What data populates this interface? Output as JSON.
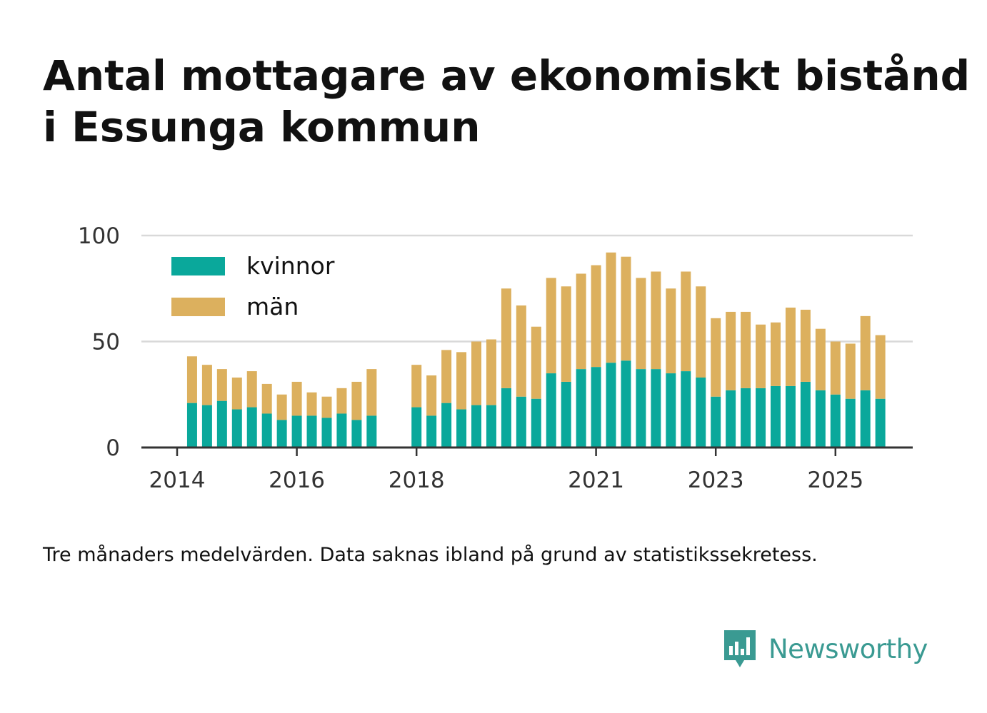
{
  "title": {
    "line1": "Antal mottagare av ekonomiskt bistånd",
    "line2": "i Essunga kommun"
  },
  "caption": "Tre månaders medelvärden. Data saknas ibland på grund av statistikssekretess.",
  "brand": {
    "name": "Newsworthy",
    "icon": "bar-chart-speech-bubble-icon",
    "color": "#3a9a92"
  },
  "colors": {
    "kvinnor": "#0aa89b",
    "man": "#dcb05e",
    "grid": "#d9d9d9",
    "axis": "#333333",
    "tick_text": "#333333"
  },
  "chart_data": {
    "type": "bar",
    "stacked": true,
    "xlabel": "",
    "ylabel": "",
    "ylim": [
      0,
      100
    ],
    "yticks": [
      0,
      50,
      100
    ],
    "xticks": [
      "2014",
      "2016",
      "2018",
      "2021",
      "2023",
      "2025"
    ],
    "grid": true,
    "legend_position": "top-left",
    "categories": [
      "2014-Q1",
      "2014-Q2",
      "2014-Q3",
      "2014-Q4",
      "2015-Q1",
      "2015-Q2",
      "2015-Q3",
      "2015-Q4",
      "2016-Q1",
      "2016-Q2",
      "2016-Q3",
      "2016-Q4",
      "2017-Q1",
      "2017-Q2",
      "2017-Q3",
      "2017-Q4",
      "2018-Q1",
      "2018-Q2",
      "2018-Q3",
      "2018-Q4",
      "2019-Q1",
      "2019-Q2",
      "2019-Q3",
      "2019-Q4",
      "2020-Q1",
      "2020-Q2",
      "2020-Q3",
      "2020-Q4",
      "2021-Q1",
      "2021-Q2",
      "2021-Q3",
      "2021-Q4",
      "2022-Q1",
      "2022-Q2",
      "2022-Q3",
      "2022-Q4",
      "2023-Q1",
      "2023-Q2",
      "2023-Q3",
      "2023-Q4",
      "2024-Q1",
      "2024-Q2",
      "2024-Q3",
      "2024-Q4",
      "2025-Q1",
      "2025-Q2",
      "2025-Q3",
      "2025-Q4"
    ],
    "series": [
      {
        "name": "kvinnor",
        "values": [
          null,
          21,
          20,
          22,
          18,
          19,
          16,
          13,
          15,
          15,
          14,
          16,
          13,
          15,
          null,
          null,
          19,
          15,
          21,
          18,
          20,
          20,
          28,
          24,
          23,
          35,
          31,
          37,
          38,
          40,
          41,
          37,
          37,
          35,
          36,
          33,
          24,
          27,
          28,
          28,
          29,
          29,
          31,
          27,
          25,
          23,
          27,
          23
        ]
      },
      {
        "name": "män",
        "values": [
          null,
          22,
          19,
          15,
          15,
          17,
          14,
          12,
          16,
          11,
          10,
          12,
          18,
          22,
          null,
          null,
          20,
          19,
          25,
          27,
          30,
          31,
          47,
          43,
          34,
          45,
          45,
          45,
          48,
          52,
          49,
          43,
          46,
          40,
          47,
          43,
          37,
          37,
          36,
          30,
          30,
          37,
          34,
          29,
          25,
          26,
          35,
          30
        ]
      }
    ]
  }
}
